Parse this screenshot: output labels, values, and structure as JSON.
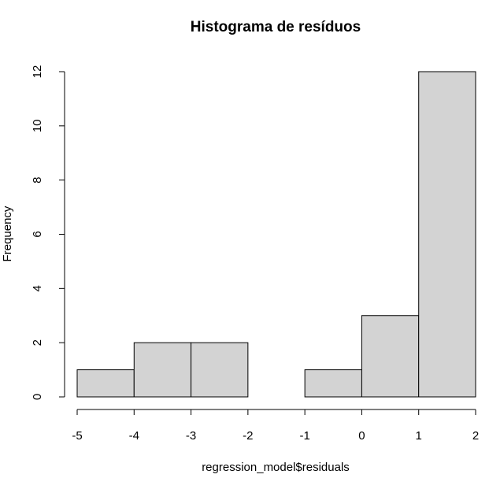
{
  "chart_data": {
    "type": "bar",
    "title": "Histograma de resíduos",
    "xlabel": "regression_model$residuals",
    "ylabel": "Frequency",
    "bins": [
      {
        "from": -5,
        "to": -4,
        "count": 1
      },
      {
        "from": -4,
        "to": -3,
        "count": 2
      },
      {
        "from": -3,
        "to": -2,
        "count": 2
      },
      {
        "from": -2,
        "to": -1,
        "count": 0
      },
      {
        "from": -1,
        "to": 0,
        "count": 1
      },
      {
        "from": 0,
        "to": 1,
        "count": 3
      },
      {
        "from": 1,
        "to": 2,
        "count": 12
      }
    ],
    "xticks": [
      -5,
      -4,
      -3,
      -2,
      -1,
      0,
      1,
      2
    ],
    "yticks": [
      0,
      2,
      4,
      6,
      8,
      10,
      12
    ],
    "xlim": [
      -5,
      2
    ],
    "ylim": [
      0,
      12
    ],
    "bar_fill": "#d3d3d3",
    "grid": false
  }
}
